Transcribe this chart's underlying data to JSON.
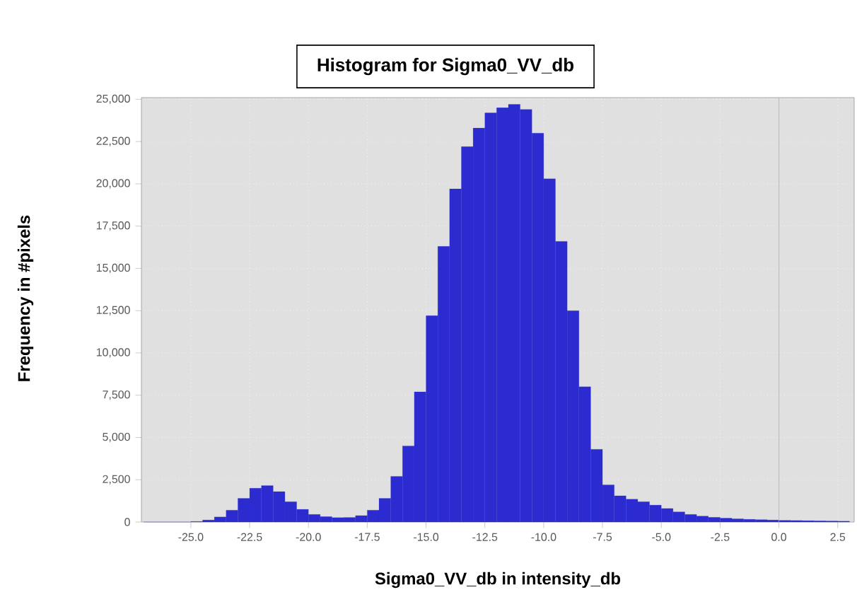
{
  "chart_data": {
    "type": "histogram",
    "title": "Histogram for Sigma0_VV_db",
    "xlabel": "Sigma0_VV_db in intensity_db",
    "ylabel": "Frequency in #pixels",
    "bins": [
      -27,
      -26.5,
      -26,
      -25.5,
      -25,
      -24.5,
      -24,
      -23.5,
      -23,
      -22.5,
      -22,
      -21.5,
      -21,
      -20.5,
      -20,
      -19.5,
      -19,
      -18.5,
      -18,
      -17.5,
      -17,
      -16.5,
      -16,
      -15.5,
      -15,
      -14.5,
      -14,
      -13.5,
      -13,
      -12.5,
      -12,
      -11.5,
      -11,
      -10.5,
      -10,
      -9.5,
      -9,
      -8.5,
      -8,
      -7.5,
      -7,
      -6.5,
      -6,
      -5.5,
      -5,
      -4.5,
      -4,
      -3.5,
      -3,
      -2.5,
      -2,
      -1.5,
      -1,
      -0.5,
      0,
      0.5,
      1,
      1.5,
      2,
      2.5,
      3
    ],
    "values": [
      0,
      0,
      0,
      0,
      30,
      120,
      300,
      700,
      1400,
      2000,
      2150,
      1800,
      1200,
      750,
      450,
      320,
      260,
      270,
      380,
      700,
      1400,
      2700,
      4500,
      7700,
      12200,
      16300,
      19700,
      22200,
      23300,
      24200,
      24500,
      24700,
      24400,
      23000,
      20300,
      16600,
      12500,
      8000,
      4300,
      2200,
      1550,
      1350,
      1200,
      1000,
      800,
      600,
      450,
      350,
      280,
      230,
      190,
      160,
      140,
      120,
      100,
      90,
      80,
      70,
      60,
      50
    ],
    "color": "#2b2bd0",
    "xlim": [
      -27.1,
      3.2
    ],
    "ylim": [
      0,
      25100
    ],
    "xticks": [
      {
        "value": -25,
        "label": "-25.0"
      },
      {
        "value": -22.5,
        "label": "-22.5"
      },
      {
        "value": -20,
        "label": "-20.0"
      },
      {
        "value": -17.5,
        "label": "-17.5"
      },
      {
        "value": -15,
        "label": "-15.0"
      },
      {
        "value": -12.5,
        "label": "-12.5"
      },
      {
        "value": -10,
        "label": "-10.0"
      },
      {
        "value": -7.5,
        "label": "-7.5"
      },
      {
        "value": -5,
        "label": "-5.0"
      },
      {
        "value": -2.5,
        "label": "-2.5"
      },
      {
        "value": 0,
        "label": "0.0"
      },
      {
        "value": 2.5,
        "label": "2.5"
      }
    ],
    "yticks": [
      0,
      {
        "value": 2500,
        "label": "2,500"
      },
      {
        "value": 5000,
        "label": "5,000"
      },
      {
        "value": 7500,
        "label": "7,500"
      },
      {
        "value": 10000,
        "label": "10,000"
      },
      {
        "value": 12500,
        "label": "12,500"
      },
      {
        "value": 15000,
        "label": "15,000"
      },
      {
        "value": 17500,
        "label": "17,500"
      },
      {
        "value": 20000,
        "label": "20,000"
      },
      {
        "value": 22500,
        "label": "22,500"
      },
      {
        "value": 25000,
        "label": "25,000"
      }
    ],
    "grid": true,
    "ref_lines": [
      {
        "axis": "x",
        "value": 0,
        "color": "#b0b0b0"
      }
    ]
  }
}
